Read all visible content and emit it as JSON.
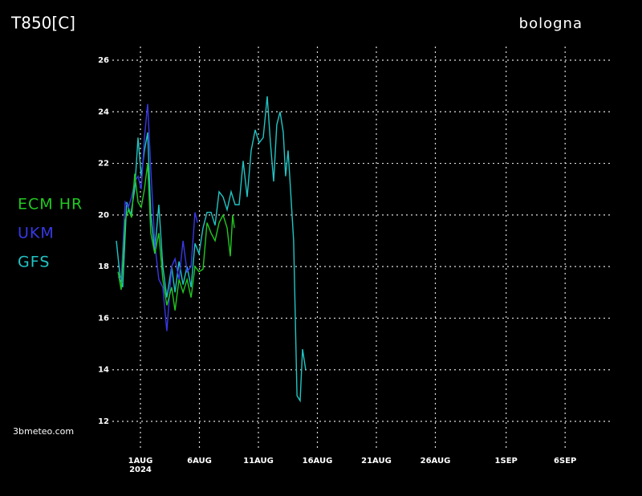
{
  "chart_data": {
    "type": "line",
    "title": "T850[C]",
    "subtitle": "bologna",
    "source": "3bmeteo.com",
    "year_label": "2024",
    "xlim": [
      -1.38,
      41
    ],
    "ylim": [
      12,
      26
    ],
    "yticks": [
      12,
      14,
      16,
      18,
      20,
      22,
      24,
      26
    ],
    "xticks": [
      {
        "value": 1,
        "label": "1AUG"
      },
      {
        "value": 6,
        "label": "6AUG"
      },
      {
        "value": 11,
        "label": "11AUG"
      },
      {
        "value": 16,
        "label": "16AUG"
      },
      {
        "value": 21,
        "label": "21AUG"
      },
      {
        "value": 26,
        "label": "26AUG"
      },
      {
        "value": 32,
        "label": "1SEP"
      },
      {
        "value": 37,
        "label": "6SEP"
      }
    ],
    "grid": true,
    "legend": "left",
    "series": [
      {
        "name": "ECM HR",
        "color": "#22c822",
        "x": [
          -0.9,
          -0.63,
          -0.29,
          -0.02,
          0.25,
          0.52,
          0.8,
          1.07,
          1.34,
          1.61,
          1.88,
          2.22,
          2.56,
          2.9,
          3.24,
          3.65,
          3.93,
          4.27,
          4.61,
          4.95,
          5.29,
          5.63,
          5.97,
          6.31,
          6.65,
          6.99,
          7.33,
          7.67,
          8.01,
          8.35,
          8.62,
          8.82,
          8.96
        ],
        "values": [
          17.8,
          17.1,
          19.8,
          20.2,
          19.9,
          21.6,
          20.5,
          20.3,
          21.0,
          22.0,
          19.3,
          18.5,
          19.3,
          17.5,
          16.5,
          17.2,
          16.3,
          17.5,
          17.0,
          17.5,
          16.8,
          18.0,
          17.8,
          17.9,
          19.7,
          19.3,
          19.0,
          19.7,
          20.0,
          19.5,
          18.4,
          20.0,
          19.5
        ]
      },
      {
        "name": "UKM",
        "color": "#3838e6",
        "x": [
          -0.9,
          -0.63,
          -0.29,
          -0.02,
          0.25,
          0.52,
          0.8,
          1.07,
          1.34,
          1.61,
          1.88,
          2.22,
          2.56,
          2.9,
          3.24,
          3.65,
          3.93,
          4.27,
          4.61,
          4.95,
          5.29,
          5.63,
          5.83
        ],
        "values": [
          17.6,
          17.5,
          20.5,
          20.3,
          20.7,
          21.3,
          21.5,
          21.0,
          23.0,
          24.3,
          21.8,
          18.9,
          17.5,
          17.2,
          15.5,
          18.0,
          18.3,
          17.5,
          19.0,
          17.8,
          18.0,
          20.1,
          19.7
        ]
      },
      {
        "name": "GFS",
        "color": "#22c4c4",
        "x": [
          -1.04,
          -0.7,
          -0.5,
          -0.16,
          0.18,
          0.52,
          0.8,
          1.07,
          1.34,
          1.61,
          1.88,
          2.22,
          2.56,
          2.9,
          3.24,
          3.65,
          3.93,
          4.27,
          4.61,
          4.95,
          5.29,
          5.63,
          5.97,
          6.31,
          6.65,
          6.99,
          7.33,
          7.67,
          8.01,
          8.35,
          8.69,
          9.03,
          9.37,
          9.71,
          10.05,
          10.39,
          10.73,
          11.07,
          11.41,
          11.75,
          12.02,
          12.29,
          12.56,
          12.84,
          13.11,
          13.31,
          13.52,
          13.72,
          13.99,
          14.27,
          14.54,
          14.74,
          15.01
        ],
        "values": [
          19.0,
          17.5,
          17.2,
          20.5,
          20.0,
          21.0,
          23.0,
          21.5,
          22.5,
          23.2,
          20.0,
          18.6,
          20.4,
          18.0,
          16.8,
          18.0,
          17.0,
          18.2,
          17.3,
          18.0,
          17.2,
          18.9,
          18.5,
          19.5,
          20.1,
          20.1,
          19.6,
          20.9,
          20.7,
          20.2,
          20.9,
          20.4,
          20.4,
          22.1,
          20.7,
          22.5,
          23.3,
          22.8,
          23.0,
          24.6,
          22.8,
          21.3,
          23.5,
          24.0,
          23.2,
          21.5,
          22.5,
          21.0,
          19.0,
          13.0,
          12.8,
          14.8,
          14.0
        ]
      }
    ]
  }
}
